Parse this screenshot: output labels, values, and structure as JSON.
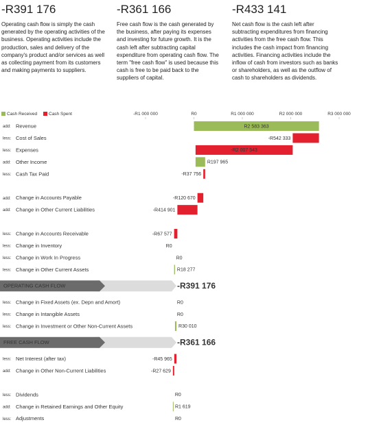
{
  "summary": [
    {
      "value_label": "-R391 176",
      "text": "Operating cash flow is simply the cash generated by the operating activities of the business. Operating activities include the production, sales and delivery of the company's product and/or services as well as collecting payment from its customers and making payments to suppliers."
    },
    {
      "value_label": "-R361 166",
      "text": "Free cash flow is the cash generated by the business, after paying its expenses and investing for future growth. It is the cash left after subtracting capital expenditure from operating cash flow. The term \"free cash flow\" is used because this cash is free to be paid back to the suppliers of capital."
    },
    {
      "value_label": "-R433 141",
      "text": "Net cash flow is the cash left after subtracting expenditures from financing activities from the free cash flow. This includes the cash impact from financing activities. Financing activities include the inflow of cash from investors such as banks or shareholders, as well as the outflow of cash to shareholders as dividends."
    }
  ],
  "chart_data": {
    "type": "waterfall",
    "legend": [
      {
        "name": "Cash Received",
        "color": "#9bbb59"
      },
      {
        "name": "Cash Spent",
        "color": "#e3202d"
      }
    ],
    "xlim": [
      -1000000,
      3000000
    ],
    "xticks": [
      {
        "value": -1000000,
        "label": "-R1 000 000"
      },
      {
        "value": 0,
        "label": "R0"
      },
      {
        "value": 1000000,
        "label": "R1 000 000"
      },
      {
        "value": 2000000,
        "label": "R2 000 000"
      },
      {
        "value": 3000000,
        "label": "R3 000 000"
      }
    ],
    "categories": [
      "Revenue",
      "Cost of Sales",
      "Expenses",
      "Other Income",
      "Cash Tax Paid",
      null,
      "Change in Accounts Payable",
      "Change in Other Current Liabilities",
      null,
      "Change in Accounts Receivable",
      "Change in Inventory",
      "Change in Work In Progress",
      "Change in Other Current Assets",
      "OPERATING CASH FLOW",
      "Change in Fixed Assets (ex. Depn and Amort)",
      "Change in Intangible Assets",
      "Change in Investment or Other Non-Current Assets",
      "FREE CASH FLOW",
      "Net Interest (after tax)",
      "Change in Other Non-Current Liabilities",
      null,
      "Dividends",
      "Change in Retained Earnings and Other Equity",
      "Adjustments"
    ],
    "prefixes": [
      "add:",
      "less:",
      "less:",
      "add:",
      "less:",
      null,
      "add:",
      "add:",
      null,
      "less:",
      "less:",
      "less:",
      "less:",
      null,
      "less:",
      "less:",
      "less:",
      null,
      "less:",
      "add:",
      null,
      "less:",
      "add:",
      "less:"
    ],
    "values": [
      2583363,
      -542333,
      -2007543,
      197965,
      -37756,
      null,
      -120670,
      -414901,
      null,
      -67577,
      0,
      0,
      18277,
      -391176,
      0,
      0,
      30010,
      -361166,
      -45965,
      -27629,
      null,
      0,
      1619,
      0
    ],
    "value_labels": [
      "R2 583 363",
      "-R542 333",
      "-R2 007 543",
      "R197 965",
      "-R37 756",
      null,
      "-R120 670",
      "-R414 901",
      null,
      "-R67 577",
      "R0",
      "R0",
      "R18 277",
      "-R391 176",
      "R0",
      "R0",
      "R30 010",
      "-R361 166",
      "-R45 965",
      "-R27 629",
      null,
      "R0",
      "R1 619",
      "R0"
    ]
  }
}
